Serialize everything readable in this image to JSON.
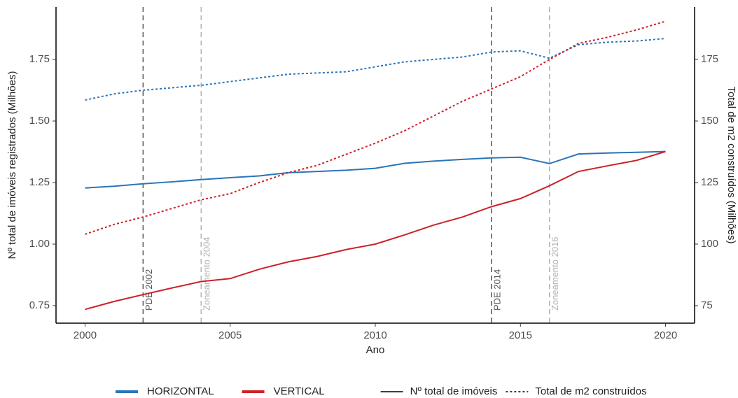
{
  "chart_data": {
    "type": "line",
    "x_label": "Ano",
    "y_label": "Nº total de imóveis registrados (Milhões)",
    "y2_label": "Total de m2 construídos (Milhões)",
    "x": [
      2000,
      2001,
      2002,
      2003,
      2004,
      2005,
      2006,
      2007,
      2008,
      2009,
      2010,
      2011,
      2012,
      2013,
      2014,
      2015,
      2016,
      2017,
      2018,
      2019,
      2020
    ],
    "series": [
      {
        "name": "HORIZONTAL",
        "linetype": "Nº total de imóveis",
        "color": "#2b74b8",
        "axis": "y",
        "values": [
          1.228,
          1.235,
          1.245,
          1.253,
          1.262,
          1.27,
          1.277,
          1.29,
          1.295,
          1.3,
          1.308,
          1.328,
          1.337,
          1.344,
          1.35,
          1.353,
          1.327,
          1.366,
          1.37,
          1.373,
          1.376
        ]
      },
      {
        "name": "VERTICAL",
        "linetype": "Nº total de imóveis",
        "color": "#cc2128",
        "axis": "y",
        "values": [
          0.735,
          0.767,
          0.795,
          0.822,
          0.848,
          0.86,
          0.898,
          0.928,
          0.95,
          0.978,
          1.0,
          1.037,
          1.077,
          1.11,
          1.152,
          1.185,
          1.237,
          1.295,
          1.318,
          1.34,
          1.376
        ]
      },
      {
        "name": "HORIZONTAL",
        "linetype": "Total de m2 construídos",
        "color": "#2b74b8",
        "axis": "y2",
        "values": [
          158.5,
          161,
          162.5,
          163.5,
          164.5,
          166,
          167.5,
          169,
          169.5,
          170,
          172,
          174,
          175,
          176,
          178,
          178.5,
          175.5,
          181,
          182,
          182.5,
          183.5
        ]
      },
      {
        "name": "VERTICAL",
        "linetype": "Total de m2 construídos",
        "color": "#cc2128",
        "axis": "y2",
        "values": [
          104,
          108,
          111,
          114.5,
          118,
          120.5,
          125,
          129,
          132,
          136.5,
          141,
          146,
          152,
          158,
          163,
          168,
          175,
          181.5,
          184,
          187,
          190.5
        ]
      }
    ],
    "xlim": [
      1999,
      2021
    ],
    "xticks": [
      2000,
      2005,
      2010,
      2015,
      2020
    ],
    "ylim": [
      0.679,
      1.963
    ],
    "yticks": [
      {
        "value": 0.75,
        "label": "0.75"
      },
      {
        "value": 1,
        "label": "1.00"
      },
      {
        "value": 1.25,
        "label": "1.25"
      },
      {
        "value": 1.5,
        "label": "1.50"
      },
      {
        "value": 1.75,
        "label": "1.75"
      }
    ],
    "y2lim": [
      67.9,
      196.3
    ],
    "y2ticks": [
      75,
      100,
      125,
      150,
      175
    ],
    "annotations": [
      {
        "x": 2002,
        "label": "PDE 2002",
        "color": "#555555"
      },
      {
        "x": 2004,
        "label": "Zoneamento 2004",
        "color": "#b3b3b3"
      },
      {
        "x": 2014,
        "label": "PDE 2014",
        "color": "#555555"
      },
      {
        "x": 2016,
        "label": "Zoneamento 2016",
        "color": "#b3b3b3"
      }
    ],
    "legend": {
      "position": "bottom",
      "colors": [
        {
          "name": "HORIZONTAL",
          "color": "#2b74b8"
        },
        {
          "name": "VERTICAL",
          "color": "#cc2128"
        }
      ],
      "linetypes": [
        {
          "name": "Nº total de imóveis",
          "dash": "solid"
        },
        {
          "name": "Total de m2 construídos",
          "dash": "dotted"
        }
      ]
    },
    "grid": false
  }
}
